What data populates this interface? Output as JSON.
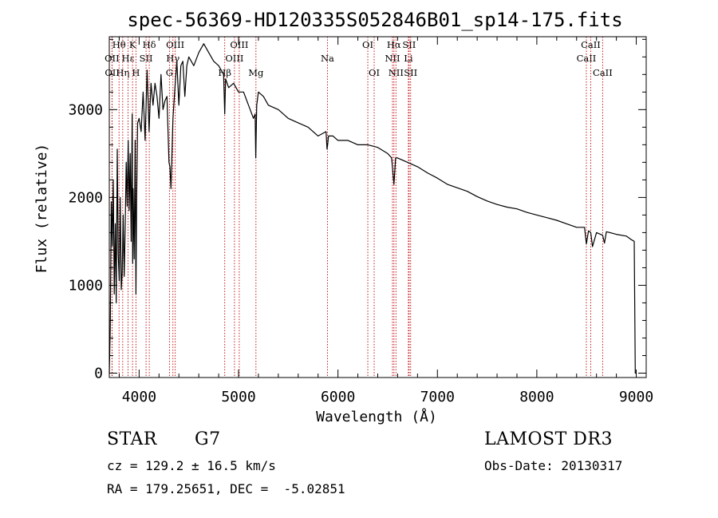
{
  "chart_data": {
    "type": "line",
    "title": "spec-56369-HD120335S052846B01_sp14-175.fits",
    "xlabel": "Wavelength (Å)",
    "ylabel": "Flux (relative)",
    "xlim": [
      3700,
      9100
    ],
    "ylim": [
      -50,
      3830
    ],
    "xticks": [
      4000,
      5000,
      6000,
      7000,
      8000,
      9000
    ],
    "yticks": [
      0,
      1000,
      2000,
      3000
    ],
    "grid": false,
    "series": [
      {
        "name": "spectrum",
        "x": [
          3700,
          3710,
          3720,
          3730,
          3740,
          3750,
          3760,
          3770,
          3780,
          3790,
          3800,
          3810,
          3820,
          3830,
          3840,
          3850,
          3860,
          3870,
          3880,
          3890,
          3900,
          3910,
          3920,
          3930,
          3935,
          3940,
          3950,
          3960,
          3968,
          3975,
          3985,
          4000,
          4020,
          4040,
          4060,
          4080,
          4100,
          4110,
          4120,
          4140,
          4160,
          4180,
          4200,
          4220,
          4240,
          4260,
          4280,
          4300,
          4310,
          4320,
          4340,
          4360,
          4380,
          4400,
          4420,
          4440,
          4460,
          4480,
          4500,
          4550,
          4600,
          4650,
          4700,
          4750,
          4800,
          4850,
          4861,
          4870,
          4900,
          4950,
          5000,
          5050,
          5100,
          5150,
          5167,
          5173,
          5183,
          5200,
          5250,
          5300,
          5400,
          5500,
          5600,
          5700,
          5800,
          5880,
          5890,
          5896,
          5905,
          5950,
          6000,
          6100,
          6200,
          6300,
          6400,
          6500,
          6540,
          6563,
          6580,
          6600,
          6700,
          6800,
          6900,
          7000,
          7100,
          7200,
          7300,
          7400,
          7500,
          7600,
          7700,
          7800,
          7900,
          8000,
          8100,
          8200,
          8300,
          8400,
          8480,
          8498,
          8520,
          8542,
          8560,
          8600,
          8662,
          8680,
          8700,
          8800,
          8900,
          8950,
          8980,
          8990,
          9000
        ],
        "values": [
          0,
          520,
          1950,
          1450,
          2200,
          900,
          1700,
          800,
          2550,
          1350,
          1050,
          2000,
          950,
          1150,
          1800,
          1100,
          1650,
          2400,
          1900,
          2650,
          1850,
          2500,
          1500,
          2950,
          1250,
          2100,
          1300,
          2650,
          900,
          2000,
          2850,
          2900,
          2750,
          3200,
          2650,
          3450,
          2750,
          3050,
          3300,
          3050,
          3300,
          3150,
          2900,
          3400,
          3000,
          3100,
          3150,
          2400,
          2350,
          2100,
          2900,
          3250,
          3550,
          3050,
          3500,
          3550,
          3150,
          3500,
          3600,
          3500,
          3650,
          3750,
          3650,
          3550,
          3500,
          3400,
          2950,
          3350,
          3250,
          3300,
          3200,
          3200,
          3050,
          2900,
          2950,
          2450,
          3050,
          3200,
          3150,
          3050,
          3000,
          2900,
          2850,
          2800,
          2700,
          2750,
          2550,
          2600,
          2700,
          2700,
          2650,
          2650,
          2600,
          2600,
          2570,
          2500,
          2450,
          2150,
          2450,
          2450,
          2400,
          2350,
          2280,
          2220,
          2150,
          2110,
          2070,
          2010,
          1960,
          1920,
          1890,
          1870,
          1830,
          1800,
          1770,
          1740,
          1700,
          1660,
          1660,
          1470,
          1620,
          1600,
          1440,
          1600,
          1570,
          1480,
          1610,
          1580,
          1560,
          1520,
          1500,
          0,
          0
        ]
      }
    ],
    "lines": [
      {
        "name": "OII",
        "wave": 3727,
        "row": 1,
        "kind": "emission",
        "color": "#c00000"
      },
      {
        "name": "OII",
        "wave": 3729,
        "row": 2,
        "kind": "emission",
        "color": "#c00000"
      },
      {
        "name": "Hθ",
        "wave": 3798,
        "row": 0,
        "kind": "emission",
        "color": "#c00000"
      },
      {
        "name": "Hη",
        "wave": 3835,
        "row": 2,
        "kind": "emission",
        "color": "#c00000"
      },
      {
        "name": "Hε",
        "wave": 3889,
        "row": 1,
        "kind": "emission",
        "color": "#c00000"
      },
      {
        "name": "K",
        "wave": 3934,
        "row": 0,
        "kind": "absorption",
        "color": "#c00000"
      },
      {
        "name": "H",
        "wave": 3968,
        "row": 2,
        "kind": "absorption",
        "color": "#c00000"
      },
      {
        "name": "SII",
        "wave": 4070,
        "row": 1,
        "kind": "emission",
        "color": "#c00000"
      },
      {
        "name": "Hδ",
        "wave": 4102,
        "row": 0,
        "kind": "emission",
        "color": "#c00000"
      },
      {
        "name": "G",
        "wave": 4305,
        "row": 2,
        "kind": "absorption",
        "color": "#c00000"
      },
      {
        "name": "Hγ",
        "wave": 4340,
        "row": 1,
        "kind": "emission",
        "color": "#c00000"
      },
      {
        "name": "OIII",
        "wave": 4363,
        "row": 0,
        "kind": "emission",
        "color": "#c00000"
      },
      {
        "name": "Hβ",
        "wave": 4861,
        "row": 2,
        "kind": "emission",
        "color": "#c00000"
      },
      {
        "name": "OIII",
        "wave": 4959,
        "row": 1,
        "kind": "emission",
        "color": "#c00000"
      },
      {
        "name": "OIII",
        "wave": 5007,
        "row": 0,
        "kind": "emission",
        "color": "#c00000"
      },
      {
        "name": "Mg",
        "wave": 5175,
        "row": 2,
        "kind": "absorption",
        "color": "#c00000"
      },
      {
        "name": "Na",
        "wave": 5894,
        "row": 1,
        "kind": "absorption",
        "color": "#c00000"
      },
      {
        "name": "OI",
        "wave": 6300,
        "row": 0,
        "kind": "emission",
        "color": "#c00000"
      },
      {
        "name": "OI",
        "wave": 6364,
        "row": 2,
        "kind": "emission",
        "color": "#c00000"
      },
      {
        "name": "NII",
        "wave": 6548,
        "row": 1,
        "kind": "emission",
        "color": "#c00000"
      },
      {
        "name": "Hα",
        "wave": 6563,
        "row": 0,
        "kind": "emission",
        "color": "#c00000"
      },
      {
        "name": "NII",
        "wave": 6583,
        "row": 2,
        "kind": "emission",
        "color": "#c00000"
      },
      {
        "name": "Li",
        "wave": 6708,
        "row": 1,
        "kind": "absorption",
        "color": "#c00000"
      },
      {
        "name": "SII",
        "wave": 6716,
        "row": 0,
        "kind": "emission",
        "color": "#c00000"
      },
      {
        "name": "SII",
        "wave": 6731,
        "row": 2,
        "kind": "emission",
        "color": "#c00000"
      },
      {
        "name": "CaII",
        "wave": 8498,
        "row": 1,
        "kind": "absorption",
        "color": "#c00000"
      },
      {
        "name": "CaII",
        "wave": 8542,
        "row": 0,
        "kind": "absorption",
        "color": "#c00000"
      },
      {
        "name": "CaII",
        "wave": 8662,
        "row": 2,
        "kind": "absorption",
        "color": "#c00000"
      }
    ]
  },
  "info": {
    "object_class": "STAR",
    "subclass": "G7",
    "survey": "LAMOST DR3",
    "redshift": "cz = 129.2 ± 16.5 km/s",
    "obs_date": "Obs-Date: 20130317",
    "coords": "RA = 179.25651, DEC =  -5.02851"
  }
}
